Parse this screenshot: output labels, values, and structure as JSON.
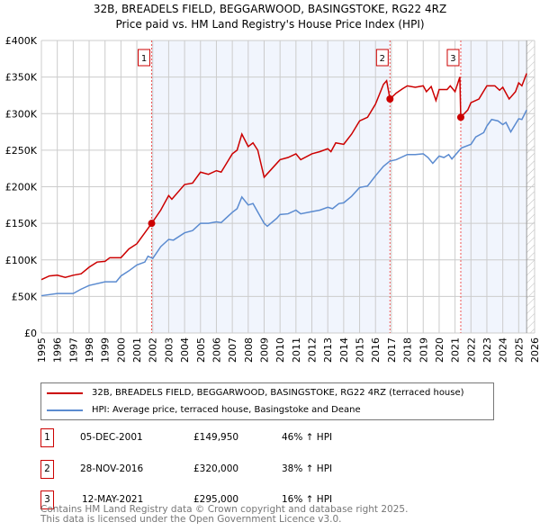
{
  "chart_data": {
    "type": "line",
    "title": "32B, BREADELS FIELD, BEGGARWOOD, BASINGSTOKE, RG22 4RZ",
    "subtitle": "Price paid vs. HM Land Registry's House Price Index (HPI)",
    "xlim": [
      1995,
      2026
    ],
    "ylim": [
      0,
      400000
    ],
    "x_ticks": [
      "1995",
      "1996",
      "1997",
      "1998",
      "1999",
      "2000",
      "2001",
      "2002",
      "2003",
      "2004",
      "2005",
      "2006",
      "2007",
      "2008",
      "2009",
      "2010",
      "2011",
      "2012",
      "2013",
      "2014",
      "2015",
      "2016",
      "2017",
      "2018",
      "2019",
      "2020",
      "2021",
      "2022",
      "2023",
      "2024",
      "2025",
      "2026"
    ],
    "y_ticks": [
      {
        "v": 0,
        "label": "£0"
      },
      {
        "v": 50000,
        "label": "£50K"
      },
      {
        "v": 100000,
        "label": "£100K"
      },
      {
        "v": 150000,
        "label": "£150K"
      },
      {
        "v": 200000,
        "label": "£200K"
      },
      {
        "v": 250000,
        "label": "£250K"
      },
      {
        "v": 300000,
        "label": "£300K"
      },
      {
        "v": 350000,
        "label": "£350K"
      },
      {
        "v": 400000,
        "label": "£400K"
      }
    ],
    "grid": true,
    "shaded_ranges": [
      [
        2001.93,
        2016.91
      ],
      [
        2021.36,
        2025.5
      ]
    ],
    "hatched_from": 2025.5,
    "series": [
      {
        "name": "32B, BREADELS FIELD, BEGGARWOOD, BASINGSTOKE, RG22 4RZ (terraced house)",
        "color": "#cc0000",
        "x": [
          1995,
          1995.5,
          1996,
          1996.5,
          1997,
          1997.5,
          1998,
          1998.5,
          1999,
          1999.3,
          2000,
          2000.5,
          2001,
          2001.5,
          2001.93,
          2002.5,
          2003,
          2003.2,
          2004,
          2004.5,
          2005,
          2005.5,
          2006,
          2006.3,
          2007,
          2007.3,
          2007.6,
          2008,
          2008.3,
          2008.6,
          2009,
          2009.5,
          2010,
          2010.5,
          2011,
          2011.3,
          2012,
          2012.5,
          2013,
          2013.2,
          2013.5,
          2014,
          2014.5,
          2015,
          2015.5,
          2016,
          2016.5,
          2016.7,
          2016.91,
          2017.3,
          2017.7,
          2018,
          2018.5,
          2019,
          2019.2,
          2019.5,
          2019.8,
          2020,
          2020.5,
          2020.7,
          2021,
          2021.3,
          2021.36,
          2021.8,
          2022,
          2022.5,
          2023,
          2023.5,
          2023.8,
          2024,
          2024.4,
          2024.8,
          2025,
          2025.2,
          2025.5
        ],
        "y": [
          73000,
          78000,
          79000,
          76000,
          79000,
          81000,
          90000,
          97000,
          98000,
          103000,
          103000,
          115000,
          122000,
          137000,
          149950,
          168000,
          188000,
          183000,
          203000,
          205000,
          220000,
          217000,
          222000,
          220000,
          245000,
          250000,
          272000,
          255000,
          260000,
          250000,
          213000,
          225000,
          237000,
          240000,
          245000,
          237000,
          245000,
          248000,
          252000,
          248000,
          260000,
          258000,
          272000,
          290000,
          295000,
          313000,
          340000,
          345000,
          320000,
          328000,
          334000,
          338000,
          336000,
          338000,
          330000,
          337000,
          318000,
          333000,
          333000,
          338000,
          330000,
          350000,
          295000,
          305000,
          315000,
          320000,
          338000,
          338000,
          332000,
          336000,
          320000,
          330000,
          342000,
          338000,
          355000
        ]
      },
      {
        "name": "HPI: Average price, terraced house, Basingstoke and Deane",
        "color": "#5b8bd0",
        "x": [
          1995,
          1996,
          1997,
          1997.5,
          1998,
          1999,
          1999.7,
          2000,
          2000.5,
          2001,
          2001.5,
          2001.7,
          2002,
          2002.5,
          2003,
          2003.3,
          2004,
          2004.5,
          2005,
          2005.5,
          2006,
          2006.3,
          2007,
          2007.3,
          2007.6,
          2008,
          2008.3,
          2009,
          2009.2,
          2009.8,
          2010,
          2010.5,
          2011,
          2011.3,
          2012,
          2012.5,
          2013,
          2013.3,
          2013.7,
          2014,
          2014.5,
          2015,
          2015.5,
          2016,
          2016.5,
          2016.9,
          2017.3,
          2018,
          2018.5,
          2019,
          2019.3,
          2019.6,
          2020,
          2020.3,
          2020.6,
          2020.8,
          2021.4,
          2022,
          2022.3,
          2022.8,
          2023,
          2023.3,
          2023.7,
          2024,
          2024.2,
          2024.5,
          2025,
          2025.2,
          2025.5
        ],
        "y": [
          51000,
          54000,
          54000,
          60000,
          65000,
          70000,
          70000,
          78000,
          85000,
          93000,
          97000,
          105000,
          102000,
          118000,
          128000,
          127000,
          137000,
          140000,
          150000,
          150000,
          152000,
          151000,
          165000,
          170000,
          186000,
          175000,
          177000,
          150000,
          146000,
          157000,
          162000,
          163000,
          168000,
          163000,
          166000,
          168000,
          172000,
          170000,
          177000,
          178000,
          187000,
          199000,
          201000,
          215000,
          228000,
          235000,
          237000,
          244000,
          244000,
          245000,
          240000,
          232000,
          242000,
          240000,
          244000,
          238000,
          253000,
          258000,
          268000,
          274000,
          283000,
          292000,
          290000,
          285000,
          288000,
          275000,
          293000,
          292000,
          305000
        ]
      }
    ],
    "annotations": [
      {
        "label": "1",
        "x": 2001.93,
        "y": 149950
      },
      {
        "label": "2",
        "x": 2016.91,
        "y": 320000
      },
      {
        "label": "3",
        "x": 2021.36,
        "y": 295000
      }
    ]
  },
  "legend": {
    "red": "32B, BREADELS FIELD, BEGGARWOOD, BASINGSTOKE, RG22 4RZ (terraced house)",
    "blue": "HPI: Average price, terraced house, Basingstoke and Deane"
  },
  "transactions": [
    {
      "num": "1",
      "date": "05-DEC-2001",
      "price": "£149,950",
      "hpi": "46% ↑ HPI"
    },
    {
      "num": "2",
      "date": "28-NOV-2016",
      "price": "£320,000",
      "hpi": "38% ↑ HPI"
    },
    {
      "num": "3",
      "date": "12-MAY-2021",
      "price": "£295,000",
      "hpi": "16% ↑ HPI"
    }
  ],
  "footer": {
    "line1": "Contains HM Land Registry data © Crown copyright and database right 2025.",
    "line2": "This data is licensed under the Open Government Licence v3.0."
  }
}
